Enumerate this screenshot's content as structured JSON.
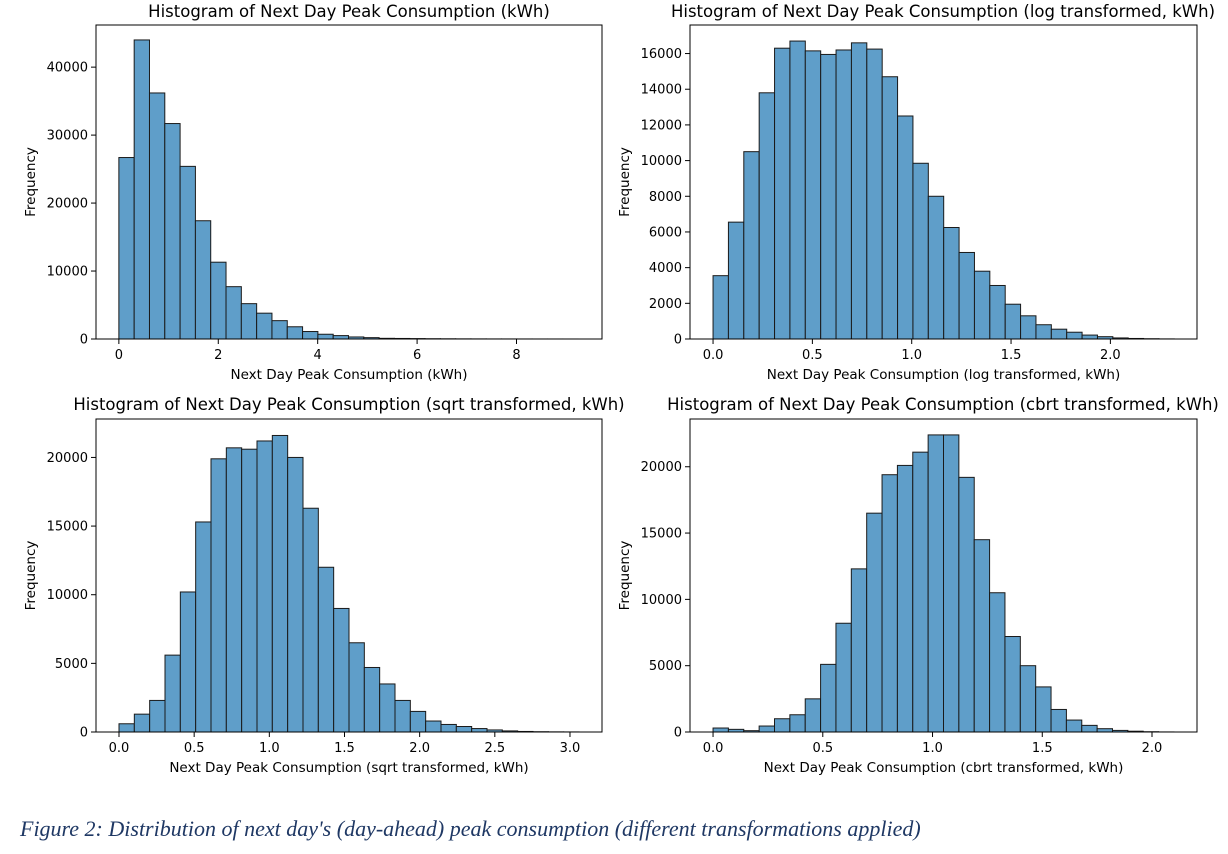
{
  "caption": "Figure 2: Distribution of next day's (day-ahead) peak consumption (different transformations applied)",
  "style": {
    "bar_fill": "#5f9ec9",
    "bar_edge": "#1a1a1a"
  },
  "chart_data": [
    {
      "type": "bar",
      "title": "Histogram of Next Day Peak Consumption (kWh)",
      "xlabel": "Next Day Peak Consumption (kWh)",
      "ylabel": "Frequency",
      "xlim": [
        -0.46,
        9.72
      ],
      "ylim": [
        0,
        46200
      ],
      "xticks": [
        0,
        2,
        4,
        6,
        8
      ],
      "xtick_labels": [
        "0",
        "2",
        "4",
        "6",
        "8"
      ],
      "yticks": [
        0,
        10000,
        20000,
        30000,
        40000
      ],
      "ytick_labels": [
        "0",
        "10000",
        "20000",
        "30000",
        "40000"
      ],
      "bin_edges": [
        0,
        0.308,
        0.616,
        0.924,
        1.232,
        1.54,
        1.848,
        2.156,
        2.464,
        2.772,
        3.08,
        3.388,
        3.696,
        4.004,
        4.312,
        4.62,
        4.928,
        5.236,
        5.544,
        5.852,
        6.16,
        6.468,
        6.776,
        7.084,
        7.392,
        7.7,
        8.008,
        8.316,
        8.624,
        8.932,
        9.24
      ],
      "values": [
        26700,
        44000,
        36200,
        31700,
        25400,
        17400,
        11300,
        7700,
        5200,
        3800,
        2700,
        1800,
        1100,
        700,
        500,
        300,
        200,
        100,
        80,
        60,
        40,
        30,
        20,
        15,
        10,
        8,
        6,
        4,
        3,
        2
      ]
    },
    {
      "type": "bar",
      "title": "Histogram of Next Day Peak Consumption (log transformed, kWh)",
      "xlabel": "Next Day Peak Consumption (log transformed, kWh)",
      "ylabel": "Frequency",
      "xlim": [
        -0.116,
        2.436
      ],
      "ylim": [
        0,
        17600
      ],
      "xticks": [
        0,
        0.5,
        1.0,
        1.5,
        2.0
      ],
      "xtick_labels": [
        "0.0",
        "0.5",
        "1.0",
        "1.5",
        "2.0"
      ],
      "yticks": [
        0,
        2000,
        4000,
        6000,
        8000,
        10000,
        12000,
        14000,
        16000
      ],
      "ytick_labels": [
        "0",
        "2000",
        "4000",
        "6000",
        "8000",
        "10000",
        "12000",
        "14000",
        "16000"
      ],
      "bin_edges": [
        0,
        0.0774,
        0.1548,
        0.2322,
        0.3096,
        0.387,
        0.4644,
        0.5418,
        0.6192,
        0.6966,
        0.774,
        0.8514,
        0.9288,
        1.0062,
        1.0836,
        1.161,
        1.2384,
        1.3158,
        1.3932,
        1.4706,
        1.548,
        1.6254,
        1.7028,
        1.7802,
        1.8576,
        1.935,
        2.0124,
        2.0898,
        2.1672,
        2.2446,
        2.322
      ],
      "values": [
        3550,
        6550,
        10500,
        13800,
        16300,
        16700,
        16150,
        15950,
        16200,
        16600,
        16250,
        14700,
        12500,
        9850,
        8000,
        6250,
        4850,
        3800,
        3000,
        1950,
        1300,
        800,
        550,
        380,
        220,
        130,
        60,
        30,
        15,
        5
      ]
    },
    {
      "type": "bar",
      "title": "Histogram of Next Day Peak Consumption (sqrt transformed, kWh)",
      "xlabel": "Next Day Peak Consumption (sqrt transformed, kWh)",
      "ylabel": "Frequency",
      "xlim": [
        -0.153,
        3.213
      ],
      "ylim": [
        0,
        22800
      ],
      "xticks": [
        0,
        0.5,
        1.0,
        1.5,
        2.0,
        2.5,
        3.0
      ],
      "xtick_labels": [
        "0.0",
        "0.5",
        "1.0",
        "1.5",
        "2.0",
        "2.5",
        "3.0"
      ],
      "yticks": [
        0,
        5000,
        10000,
        15000,
        20000
      ],
      "ytick_labels": [
        "0",
        "5000",
        "10000",
        "15000",
        "20000"
      ],
      "bin_edges": [
        0,
        0.102,
        0.204,
        0.306,
        0.408,
        0.51,
        0.612,
        0.714,
        0.816,
        0.918,
        1.02,
        1.122,
        1.224,
        1.326,
        1.428,
        1.53,
        1.632,
        1.734,
        1.836,
        1.938,
        2.04,
        2.142,
        2.244,
        2.346,
        2.448,
        2.55,
        2.652,
        2.754,
        2.856,
        2.958,
        3.06
      ],
      "values": [
        600,
        1300,
        2300,
        5600,
        10200,
        15300,
        19900,
        20700,
        20600,
        21200,
        21600,
        20000,
        16300,
        12000,
        9000,
        6500,
        4700,
        3500,
        2300,
        1500,
        800,
        550,
        400,
        250,
        150,
        80,
        40,
        20,
        10,
        5
      ]
    },
    {
      "type": "bar",
      "title": "Histogram of Next Day Peak Consumption (cbrt transformed, kWh)",
      "xlabel": "Next Day Peak Consumption (cbrt transformed, kWh)",
      "ylabel": "Frequency",
      "xlim": [
        -0.105,
        2.205
      ],
      "ylim": [
        0,
        23600
      ],
      "xticks": [
        0,
        0.5,
        1.0,
        1.5,
        2.0
      ],
      "xtick_labels": [
        "0.0",
        "0.5",
        "1.0",
        "1.5",
        "2.0"
      ],
      "yticks": [
        0,
        5000,
        10000,
        15000,
        20000
      ],
      "ytick_labels": [
        "0",
        "5000",
        "10000",
        "15000",
        "20000"
      ],
      "bin_edges": [
        0,
        0.07,
        0.14,
        0.21,
        0.28,
        0.35,
        0.42,
        0.49,
        0.56,
        0.63,
        0.7,
        0.77,
        0.84,
        0.91,
        0.98,
        1.05,
        1.12,
        1.19,
        1.26,
        1.33,
        1.4,
        1.47,
        1.54,
        1.61,
        1.68,
        1.75,
        1.82,
        1.89,
        1.96,
        2.03,
        2.1
      ],
      "values": [
        300,
        200,
        100,
        450,
        1000,
        1300,
        2500,
        5100,
        8200,
        12300,
        16500,
        19400,
        20100,
        21100,
        22400,
        22400,
        19200,
        14500,
        10500,
        7200,
        5000,
        3400,
        1700,
        900,
        500,
        250,
        120,
        60,
        20,
        5
      ]
    }
  ]
}
